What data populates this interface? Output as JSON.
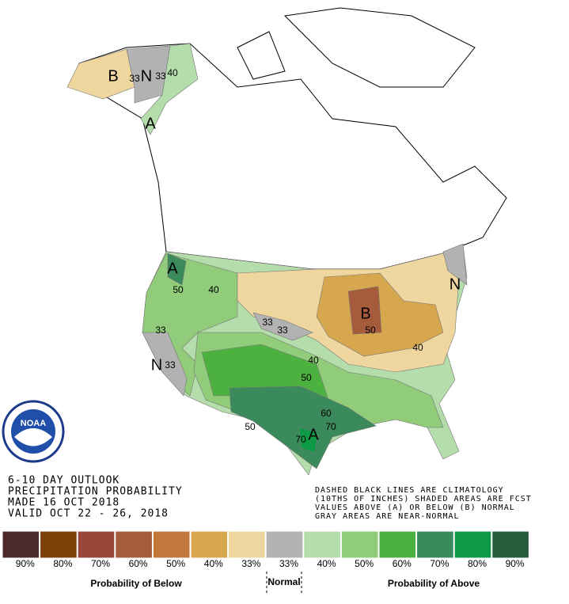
{
  "header": {
    "lines": [
      "6-10 DAY OUTLOOK",
      "PRECIPITATION PROBABILITY",
      "MADE  16 OCT 2018",
      "VALID  OCT 22 - 26, 2018"
    ]
  },
  "notes": [
    "DASHED BLACK LINES ARE CLIMATOLOGY",
    "(10THS OF INCHES) SHADED AREAS ARE FCST",
    "VALUES ABOVE (A) OR BELOW (B) NORMAL",
    "GRAY AREAS ARE NEAR-NORMAL"
  ],
  "logo": "NOAA",
  "map_labels": [
    "B",
    "33",
    "N",
    "33",
    "40",
    "A",
    "A",
    "50",
    "40",
    "33",
    "33",
    "33",
    "N",
    "33",
    "B",
    "50",
    "40",
    "40",
    "50",
    "60",
    "70",
    "A",
    "70",
    "50",
    "N"
  ],
  "legend": {
    "swatches": [
      {
        "label": "90%",
        "color": "#4d2a2a"
      },
      {
        "label": "80%",
        "color": "#7c3f06"
      },
      {
        "label": "70%",
        "color": "#97473a"
      },
      {
        "label": "60%",
        "color": "#a65b3b"
      },
      {
        "label": "50%",
        "color": "#c4773a"
      },
      {
        "label": "40%",
        "color": "#d6a74c"
      },
      {
        "label": "33%",
        "color": "#efd69e"
      },
      {
        "label": "33%",
        "color": "#b2b2b2"
      },
      {
        "label": "40%",
        "color": "#b5dcab"
      },
      {
        "label": "50%",
        "color": "#90cc79"
      },
      {
        "label": "60%",
        "color": "#4db140"
      },
      {
        "label": "70%",
        "color": "#3b8a5c"
      },
      {
        "label": "80%",
        "color": "#0e9a45"
      },
      {
        "label": "90%",
        "color": "#265c3c"
      }
    ],
    "below": "Probability of Below",
    "normal": "Normal",
    "above": "Probability of Above"
  }
}
